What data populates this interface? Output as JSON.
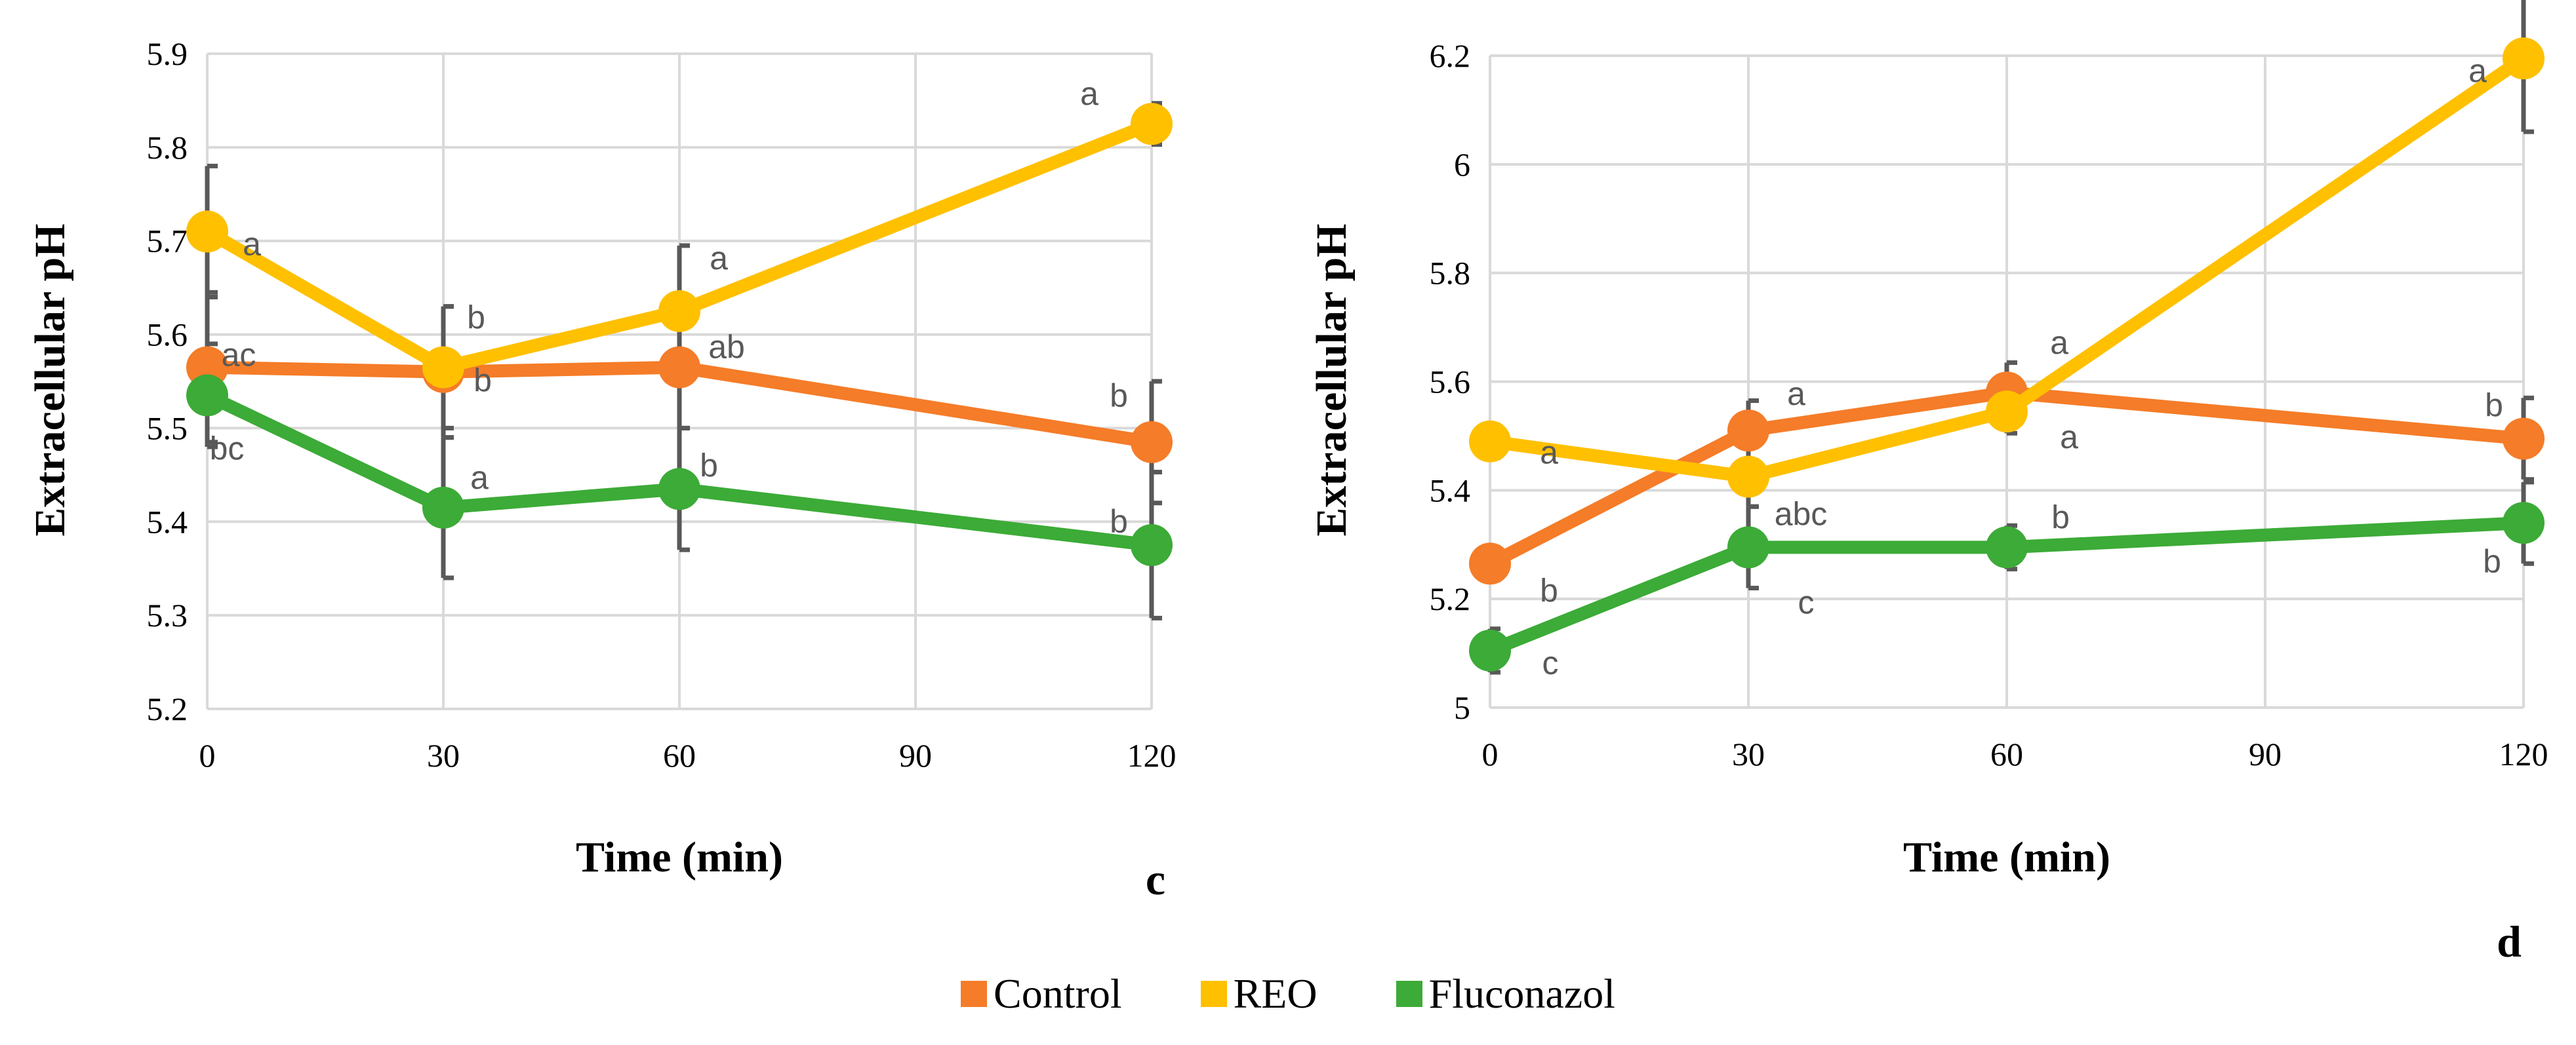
{
  "chart_data": [
    {
      "type": "line",
      "panel_label": "c",
      "xlabel": "Time (min)",
      "ylabel": "Extracellular pH",
      "x": [
        0,
        30,
        60,
        120
      ],
      "x_ticks": [
        "0",
        "30",
        "60",
        "90",
        "120"
      ],
      "xlim": [
        0,
        120
      ],
      "ylim": [
        5.2,
        5.9
      ],
      "y_ticks": [
        "5.2",
        "5.3",
        "5.4",
        "5.5",
        "5.6",
        "5.7",
        "5.8",
        "5.9"
      ],
      "grid": true,
      "series": [
        {
          "name": "Control",
          "color": "#F57C28",
          "values": [
            5.565,
            5.56,
            5.565,
            5.485
          ],
          "errors": [
            0.08,
            0.07,
            0.065,
            0.065
          ],
          "sig": [
            "ac",
            "b",
            "ab",
            "b"
          ]
        },
        {
          "name": "REO",
          "color": "#FFC000",
          "values": [
            5.71,
            5.565,
            5.625,
            5.825
          ],
          "errors": [
            0.07,
            0.065,
            0.07,
            0.022
          ],
          "sig": [
            "a",
            "b",
            "a",
            "a"
          ]
        },
        {
          "name": "Fluconazol",
          "color": "#3CAB37",
          "values": [
            5.535,
            5.415,
            5.435,
            5.375
          ],
          "errors": [
            0.055,
            0.075,
            0.065,
            0.078
          ],
          "sig": [
            "bc",
            "a",
            "b",
            "b"
          ]
        }
      ]
    },
    {
      "type": "line",
      "panel_label": "d",
      "xlabel": "Time (min)",
      "ylabel": "Extracellular pH",
      "x": [
        0,
        30,
        60,
        120
      ],
      "x_ticks": [
        "0",
        "30",
        "60",
        "90",
        "120"
      ],
      "xlim": [
        0,
        120
      ],
      "ylim": [
        5,
        6.2
      ],
      "y_ticks": [
        "5",
        "5.2",
        "5.4",
        "5.6",
        "5.8",
        "6",
        "6.2"
      ],
      "grid": true,
      "series": [
        {
          "name": "Control",
          "color": "#F57C28",
          "values": [
            5.265,
            5.51,
            5.58,
            5.495
          ],
          "errors": [
            0.03,
            0.055,
            0.055,
            0.075
          ],
          "sig": [
            "b",
            "a",
            "a",
            "b"
          ]
        },
        {
          "name": "REO",
          "color": "#FFC000",
          "values": [
            5.49,
            5.425,
            5.545,
            6.195
          ],
          "errors": [
            0.03,
            0.055,
            0.04,
            0.135
          ],
          "sig": [
            "a",
            "abc",
            "a",
            "a"
          ]
        },
        {
          "name": "Fluconazol",
          "color": "#3CAB37",
          "values": [
            5.105,
            5.295,
            5.295,
            5.34
          ],
          "errors": [
            0.04,
            0.075,
            0.04,
            0.075
          ],
          "sig": [
            "c",
            "c",
            "b",
            "b"
          ]
        }
      ]
    }
  ],
  "legend": [
    {
      "label": "Control",
      "color": "#F57C28"
    },
    {
      "label": "REO",
      "color": "#FFC000"
    },
    {
      "label": "Fluconazol",
      "color": "#3CAB37"
    }
  ]
}
